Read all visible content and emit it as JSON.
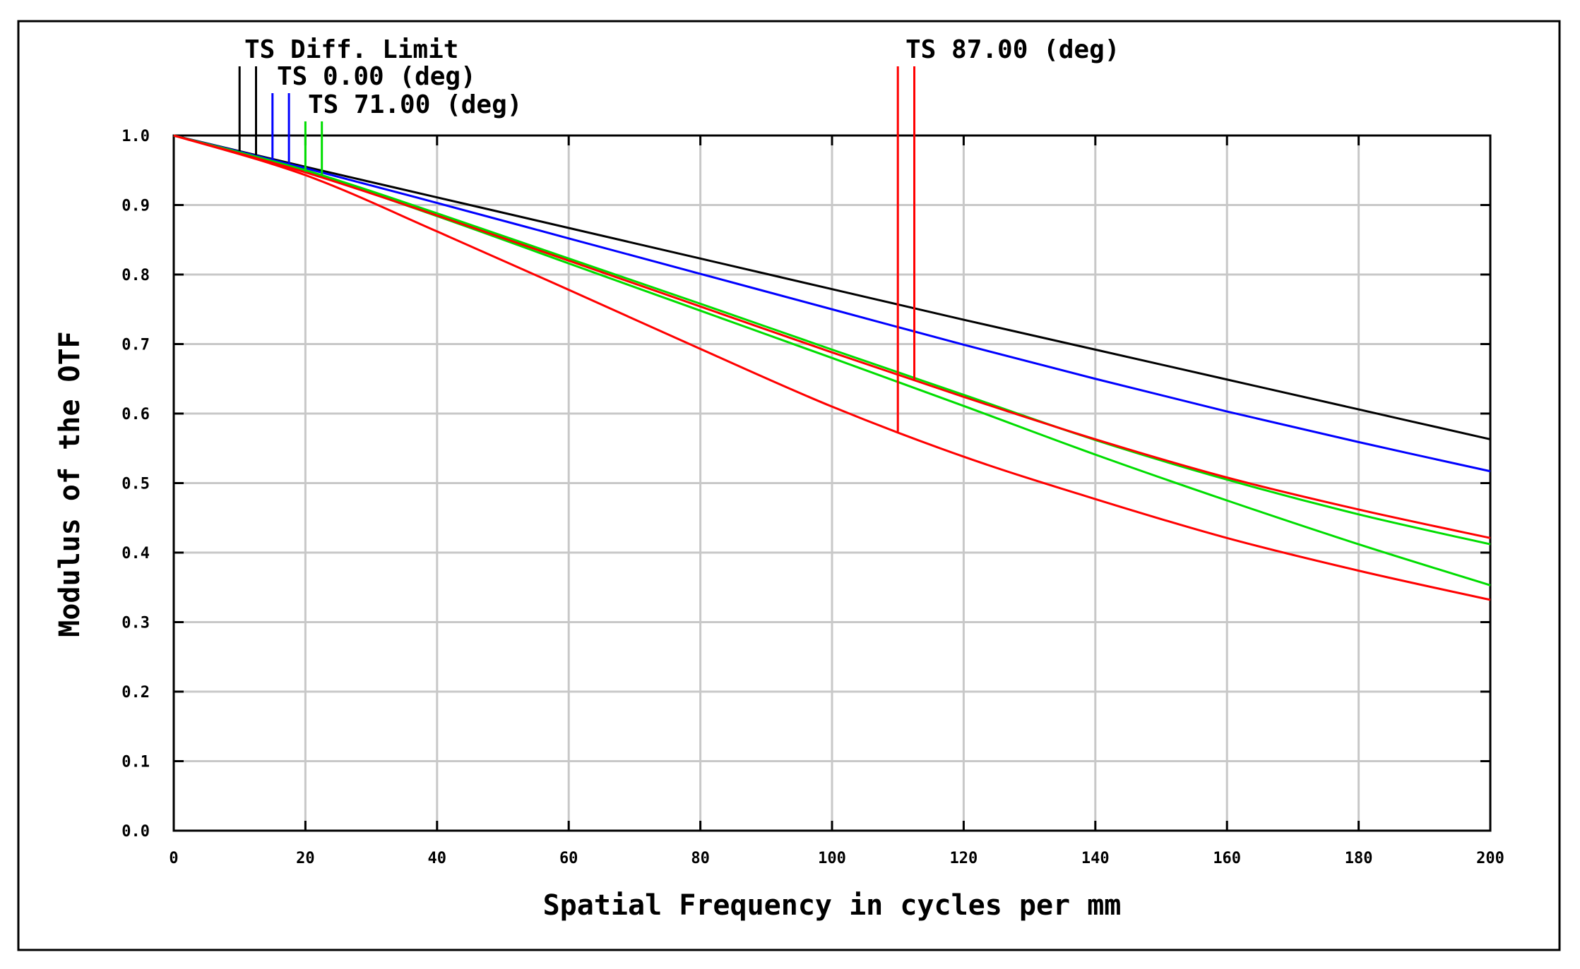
{
  "chart_data": {
    "type": "line",
    "xlabel": "Spatial Frequency in cycles per mm",
    "ylabel": "Modulus of the OTF",
    "xlim": [
      0,
      200
    ],
    "ylim": [
      0,
      1
    ],
    "x_ticks": [
      0,
      20,
      40,
      60,
      80,
      100,
      120,
      140,
      160,
      180,
      200
    ],
    "x_tick_labels": [
      "0",
      "20",
      "40",
      "60",
      "80",
      "100",
      "120",
      "140",
      "160",
      "180",
      "200"
    ],
    "y_ticks": [
      0,
      0.1,
      0.2,
      0.3,
      0.4,
      0.5,
      0.6,
      0.7,
      0.8,
      0.9,
      1.0
    ],
    "y_tick_labels": [
      "0.0",
      "0.1",
      "0.2",
      "0.3",
      "0.4",
      "0.5",
      "0.6",
      "0.7",
      "0.8",
      "0.9",
      "1.0"
    ],
    "grid": true,
    "legend": [
      {
        "label": "TS Diff. Limit",
        "color": "#000000",
        "markers_x": [
          10,
          12.5
        ]
      },
      {
        "label": "TS 0.00 (deg)",
        "color": "#0000ff",
        "markers_x": [
          15,
          17.5
        ]
      },
      {
        "label": "TS 71.00 (deg)",
        "color": "#00dd00",
        "markers_x": [
          20,
          22.5
        ]
      },
      {
        "label": "TS 87.00 (deg)",
        "color": "#ff0000",
        "markers_x": [
          110,
          112.5
        ]
      }
    ],
    "series": [
      {
        "name": "TS Diff. Limit",
        "color": "#000000",
        "x": [
          0,
          20,
          40,
          60,
          80,
          100,
          120,
          140,
          160,
          180,
          200
        ],
        "y": [
          1.0,
          0.955,
          0.911,
          0.867,
          0.823,
          0.779,
          0.735,
          0.692,
          0.649,
          0.606,
          0.563
        ]
      },
      {
        "name": "TS 0.00 (deg) T",
        "color": "#0000ff",
        "x": [
          0,
          20,
          40,
          60,
          80,
          100,
          120,
          140,
          160,
          180,
          200
        ],
        "y": [
          1.0,
          0.953,
          0.903,
          0.852,
          0.801,
          0.75,
          0.699,
          0.65,
          0.603,
          0.559,
          0.517
        ]
      },
      {
        "name": "TS 71.00 (deg) T",
        "color": "#00dd00",
        "x": [
          0,
          20,
          40,
          60,
          80,
          100,
          120,
          140,
          160,
          180,
          200
        ],
        "y": [
          1.0,
          0.95,
          0.888,
          0.823,
          0.758,
          0.692,
          0.627,
          0.562,
          0.505,
          0.455,
          0.412
        ]
      },
      {
        "name": "TS 71.00 (deg) S",
        "color": "#00dd00",
        "x": [
          0,
          20,
          40,
          60,
          80,
          100,
          120,
          140,
          160,
          180,
          200
        ],
        "y": [
          1.0,
          0.948,
          0.884,
          0.816,
          0.748,
          0.68,
          0.611,
          0.541,
          0.475,
          0.412,
          0.353
        ]
      },
      {
        "name": "TS 87.00 (deg) T",
        "color": "#ff0000",
        "x": [
          0,
          20,
          40,
          60,
          80,
          100,
          120,
          140,
          160,
          180,
          200
        ],
        "y": [
          1.0,
          0.947,
          0.885,
          0.82,
          0.754,
          0.688,
          0.624,
          0.563,
          0.508,
          0.462,
          0.421
        ]
      },
      {
        "name": "TS 87.00 (deg) S",
        "color": "#ff0000",
        "x": [
          0,
          20,
          40,
          60,
          80,
          100,
          120,
          140,
          160,
          180,
          200
        ],
        "y": [
          1.0,
          0.943,
          0.862,
          0.778,
          0.693,
          0.61,
          0.538,
          0.477,
          0.421,
          0.374,
          0.332
        ]
      }
    ]
  }
}
